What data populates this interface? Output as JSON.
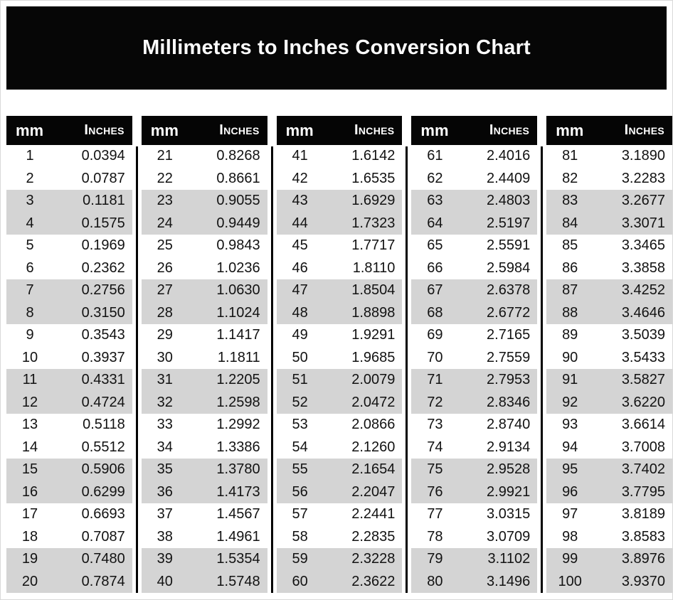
{
  "title": "Millimeters to Inches Conversion Chart",
  "column_headers": {
    "mm": "mm",
    "inches": "Inches"
  },
  "colors": {
    "title_band_bg": "#060606",
    "table_header_bg": "#050505",
    "row_stripe": "#d4d4d4",
    "body_text": "#121212",
    "page_bg": "#ffffff",
    "divider": "#000000"
  },
  "tables": [
    {
      "rows": [
        {
          "mm": "1",
          "inches": "0.0394"
        },
        {
          "mm": "2",
          "inches": "0.0787"
        },
        {
          "mm": "3",
          "inches": "0.1181"
        },
        {
          "mm": "4",
          "inches": "0.1575"
        },
        {
          "mm": "5",
          "inches": "0.1969"
        },
        {
          "mm": "6",
          "inches": "0.2362"
        },
        {
          "mm": "7",
          "inches": "0.2756"
        },
        {
          "mm": "8",
          "inches": "0.3150"
        },
        {
          "mm": "9",
          "inches": "0.3543"
        },
        {
          "mm": "10",
          "inches": "0.3937"
        },
        {
          "mm": "11",
          "inches": "0.4331"
        },
        {
          "mm": "12",
          "inches": "0.4724"
        },
        {
          "mm": "13",
          "inches": "0.5118"
        },
        {
          "mm": "14",
          "inches": "0.5512"
        },
        {
          "mm": "15",
          "inches": "0.5906"
        },
        {
          "mm": "16",
          "inches": "0.6299"
        },
        {
          "mm": "17",
          "inches": "0.6693"
        },
        {
          "mm": "18",
          "inches": "0.7087"
        },
        {
          "mm": "19",
          "inches": "0.7480"
        },
        {
          "mm": "20",
          "inches": "0.7874"
        }
      ]
    },
    {
      "rows": [
        {
          "mm": "21",
          "inches": "0.8268"
        },
        {
          "mm": "22",
          "inches": "0.8661"
        },
        {
          "mm": "23",
          "inches": "0.9055"
        },
        {
          "mm": "24",
          "inches": "0.9449"
        },
        {
          "mm": "25",
          "inches": "0.9843"
        },
        {
          "mm": "26",
          "inches": "1.0236"
        },
        {
          "mm": "27",
          "inches": "1.0630"
        },
        {
          "mm": "28",
          "inches": "1.1024"
        },
        {
          "mm": "29",
          "inches": "1.1417"
        },
        {
          "mm": "30",
          "inches": "1.1811"
        },
        {
          "mm": "31",
          "inches": "1.2205"
        },
        {
          "mm": "32",
          "inches": "1.2598"
        },
        {
          "mm": "33",
          "inches": "1.2992"
        },
        {
          "mm": "34",
          "inches": "1.3386"
        },
        {
          "mm": "35",
          "inches": "1.3780"
        },
        {
          "mm": "36",
          "inches": "1.4173"
        },
        {
          "mm": "37",
          "inches": "1.4567"
        },
        {
          "mm": "38",
          "inches": "1.4961"
        },
        {
          "mm": "39",
          "inches": "1.5354"
        },
        {
          "mm": "40",
          "inches": "1.5748"
        }
      ]
    },
    {
      "rows": [
        {
          "mm": "41",
          "inches": "1.6142"
        },
        {
          "mm": "42",
          "inches": "1.6535"
        },
        {
          "mm": "43",
          "inches": "1.6929"
        },
        {
          "mm": "44",
          "inches": "1.7323"
        },
        {
          "mm": "45",
          "inches": "1.7717"
        },
        {
          "mm": "46",
          "inches": "1.8110"
        },
        {
          "mm": "47",
          "inches": "1.8504"
        },
        {
          "mm": "48",
          "inches": "1.8898"
        },
        {
          "mm": "49",
          "inches": "1.9291"
        },
        {
          "mm": "50",
          "inches": "1.9685"
        },
        {
          "mm": "51",
          "inches": "2.0079"
        },
        {
          "mm": "52",
          "inches": "2.0472"
        },
        {
          "mm": "53",
          "inches": "2.0866"
        },
        {
          "mm": "54",
          "inches": "2.1260"
        },
        {
          "mm": "55",
          "inches": "2.1654"
        },
        {
          "mm": "56",
          "inches": "2.2047"
        },
        {
          "mm": "57",
          "inches": "2.2441"
        },
        {
          "mm": "58",
          "inches": "2.2835"
        },
        {
          "mm": "59",
          "inches": "2.3228"
        },
        {
          "mm": "60",
          "inches": "2.3622"
        }
      ]
    },
    {
      "rows": [
        {
          "mm": "61",
          "inches": "2.4016"
        },
        {
          "mm": "62",
          "inches": "2.4409"
        },
        {
          "mm": "63",
          "inches": "2.4803"
        },
        {
          "mm": "64",
          "inches": "2.5197"
        },
        {
          "mm": "65",
          "inches": "2.5591"
        },
        {
          "mm": "66",
          "inches": "2.5984"
        },
        {
          "mm": "67",
          "inches": "2.6378"
        },
        {
          "mm": "68",
          "inches": "2.6772"
        },
        {
          "mm": "69",
          "inches": "2.7165"
        },
        {
          "mm": "70",
          "inches": "2.7559"
        },
        {
          "mm": "71",
          "inches": "2.7953"
        },
        {
          "mm": "72",
          "inches": "2.8346"
        },
        {
          "mm": "73",
          "inches": "2.8740"
        },
        {
          "mm": "74",
          "inches": "2.9134"
        },
        {
          "mm": "75",
          "inches": "2.9528"
        },
        {
          "mm": "76",
          "inches": "2.9921"
        },
        {
          "mm": "77",
          "inches": "3.0315"
        },
        {
          "mm": "78",
          "inches": "3.0709"
        },
        {
          "mm": "79",
          "inches": "3.1102"
        },
        {
          "mm": "80",
          "inches": "3.1496"
        }
      ]
    },
    {
      "rows": [
        {
          "mm": "81",
          "inches": "3.1890"
        },
        {
          "mm": "82",
          "inches": "3.2283"
        },
        {
          "mm": "83",
          "inches": "3.2677"
        },
        {
          "mm": "84",
          "inches": "3.3071"
        },
        {
          "mm": "85",
          "inches": "3.3465"
        },
        {
          "mm": "86",
          "inches": "3.3858"
        },
        {
          "mm": "87",
          "inches": "3.4252"
        },
        {
          "mm": "88",
          "inches": "3.4646"
        },
        {
          "mm": "89",
          "inches": "3.5039"
        },
        {
          "mm": "90",
          "inches": "3.5433"
        },
        {
          "mm": "91",
          "inches": "3.5827"
        },
        {
          "mm": "92",
          "inches": "3.6220"
        },
        {
          "mm": "93",
          "inches": "3.6614"
        },
        {
          "mm": "94",
          "inches": "3.7008"
        },
        {
          "mm": "95",
          "inches": "3.7402"
        },
        {
          "mm": "96",
          "inches": "3.7795"
        },
        {
          "mm": "97",
          "inches": "3.8189"
        },
        {
          "mm": "98",
          "inches": "3.8583"
        },
        {
          "mm": "99",
          "inches": "3.8976"
        },
        {
          "mm": "100",
          "inches": "3.9370"
        }
      ]
    }
  ]
}
